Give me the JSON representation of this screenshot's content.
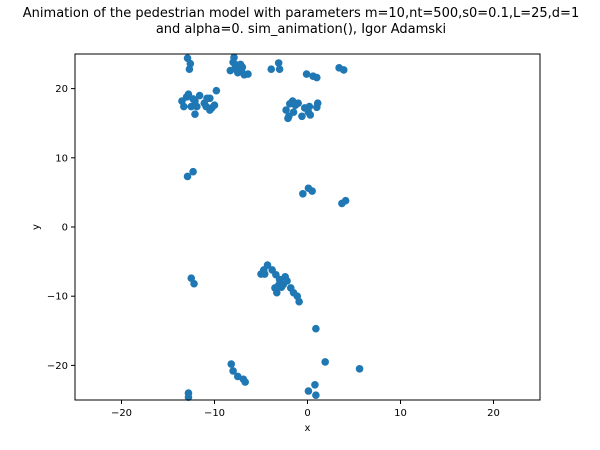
{
  "chart_data": {
    "type": "scatter",
    "title_lines": [
      "Animation of the pedestrian model with parameters m=10,nt=500,s0=0.1,L=25,d=1",
      "and alpha=0. sim_animation(), Igor Adamski"
    ],
    "xlabel": "x",
    "ylabel": "y",
    "xlim": [
      -25,
      25
    ],
    "ylim": [
      -25,
      25
    ],
    "xticks": [
      -20,
      -10,
      0,
      10,
      20
    ],
    "yticks": [
      -20,
      -10,
      0,
      10,
      20
    ],
    "xtick_labels": [
      "−20",
      "−10",
      "0",
      "10",
      "20"
    ],
    "ytick_labels": [
      "−20",
      "−10",
      "0",
      "10",
      "20"
    ],
    "grid": false,
    "marker_color": "#1f77b4",
    "points": [
      [
        -12.9,
        24.4
      ],
      [
        -12.6,
        23.6
      ],
      [
        -12.7,
        22.8
      ],
      [
        -7.9,
        24.5
      ],
      [
        -8.0,
        23.8
      ],
      [
        -7.6,
        23.4
      ],
      [
        -7.2,
        23.5
      ],
      [
        -7.0,
        23.1
      ],
      [
        -7.8,
        22.9
      ],
      [
        -8.3,
        22.6
      ],
      [
        -7.5,
        22.3
      ],
      [
        -7.1,
        22.6
      ],
      [
        -6.8,
        22.0
      ],
      [
        -6.4,
        22.1
      ],
      [
        -3.9,
        22.8
      ],
      [
        -3.1,
        23.7
      ],
      [
        -3.0,
        22.8
      ],
      [
        -0.1,
        22.1
      ],
      [
        0.6,
        21.8
      ],
      [
        1.0,
        21.6
      ],
      [
        3.4,
        23.0
      ],
      [
        3.9,
        22.7
      ],
      [
        -13.5,
        18.2
      ],
      [
        -13.0,
        18.8
      ],
      [
        -12.8,
        19.2
      ],
      [
        -13.3,
        17.4
      ],
      [
        -12.5,
        17.4
      ],
      [
        -12.1,
        18.2
      ],
      [
        -11.9,
        17.4
      ],
      [
        -11.6,
        19.0
      ],
      [
        -11.1,
        17.9
      ],
      [
        -10.9,
        17.4
      ],
      [
        -10.5,
        18.6
      ],
      [
        -10.3,
        17.2
      ],
      [
        -10.0,
        17.6
      ],
      [
        -9.8,
        19.7
      ],
      [
        -10.5,
        16.9
      ],
      [
        -10.8,
        18.6
      ],
      [
        -12.1,
        16.3
      ],
      [
        -12.3,
        18.5
      ],
      [
        -2.3,
        16.9
      ],
      [
        -1.9,
        17.8
      ],
      [
        -1.6,
        18.2
      ],
      [
        -1.3,
        17.6
      ],
      [
        -1.0,
        17.9
      ],
      [
        -1.5,
        16.6
      ],
      [
        -2.0,
        16.0
      ],
      [
        -2.1,
        15.7
      ],
      [
        -0.6,
        16.0
      ],
      [
        -0.3,
        17.2
      ],
      [
        0.2,
        17.4
      ],
      [
        0.1,
        16.6
      ],
      [
        1.1,
        17.9
      ],
      [
        1.0,
        17.3
      ],
      [
        0.3,
        16.2
      ],
      [
        -12.9,
        7.3
      ],
      [
        -12.3,
        8.0
      ],
      [
        -0.5,
        4.8
      ],
      [
        0.1,
        5.6
      ],
      [
        0.5,
        5.2
      ],
      [
        3.7,
        3.4
      ],
      [
        4.1,
        3.8
      ],
      [
        -4.3,
        -5.5
      ],
      [
        -4.7,
        -6.2
      ],
      [
        -5.0,
        -6.8
      ],
      [
        -3.8,
        -6.2
      ],
      [
        -3.4,
        -6.9
      ],
      [
        -3.0,
        -7.6
      ],
      [
        -2.4,
        -7.2
      ],
      [
        -2.2,
        -7.8
      ],
      [
        -2.6,
        -8.3
      ],
      [
        -3.1,
        -8.4
      ],
      [
        -2.8,
        -8.7
      ],
      [
        -3.5,
        -8.8
      ],
      [
        -3.3,
        -9.5
      ],
      [
        -1.8,
        -8.8
      ],
      [
        -1.5,
        -9.5
      ],
      [
        -1.1,
        -10.0
      ],
      [
        -0.9,
        -10.8
      ],
      [
        -4.6,
        -6.8
      ],
      [
        -12.5,
        -7.4
      ],
      [
        -12.2,
        -8.2
      ],
      [
        0.9,
        -14.7
      ],
      [
        1.9,
        -19.5
      ],
      [
        5.6,
        -20.5
      ],
      [
        -8.2,
        -19.8
      ],
      [
        -8.0,
        -20.8
      ],
      [
        -7.5,
        -21.6
      ],
      [
        -6.9,
        -22.0
      ],
      [
        -6.7,
        -22.4
      ],
      [
        0.1,
        -23.7
      ],
      [
        0.8,
        -22.8
      ],
      [
        0.9,
        -24.3
      ],
      [
        -12.8,
        -24.0
      ],
      [
        -12.8,
        -24.6
      ]
    ]
  }
}
